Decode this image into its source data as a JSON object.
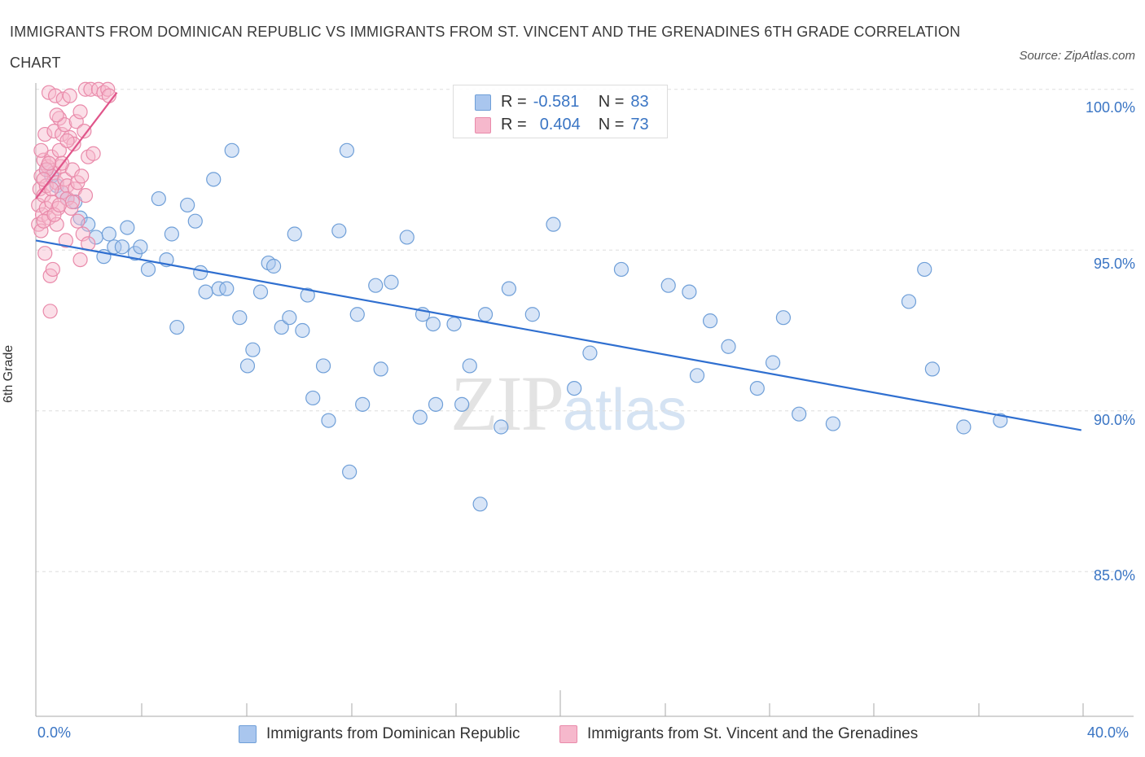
{
  "chart_data": {
    "type": "scatter",
    "title": "IMMIGRANTS FROM DOMINICAN REPUBLIC VS IMMIGRANTS FROM ST. VINCENT AND THE GRENADINES 6TH GRADE CORRELATION CHART",
    "source": "Source: ZipAtlas.com",
    "xlabel": "",
    "ylabel": "6th Grade",
    "xlim": [
      0,
      42
    ],
    "ylim": [
      80.5,
      100.5
    ],
    "x_tick_labels": {
      "left": "0.0%",
      "right": "40.0%"
    },
    "y_ticks": [
      {
        "value": 100,
        "label": "100.0%"
      },
      {
        "value": 95,
        "label": "95.0%"
      },
      {
        "value": 90,
        "label": "90.0%"
      },
      {
        "value": 85,
        "label": "85.0%"
      }
    ],
    "watermark": {
      "zip": "ZIP",
      "atlas": "atlas"
    },
    "series": [
      {
        "name": "Immigrants from Dominican Republic",
        "color": "#a9c6ee",
        "stroke": "#6f9fd8",
        "line_color": "#2f6fd0",
        "R": "-0.581",
        "N": "83",
        "trend": {
          "x0": 0,
          "y0": 95.3,
          "x1": 40,
          "y1": 89.4
        },
        "points": [
          [
            0.4,
            97.5
          ],
          [
            0.6,
            97.3
          ],
          [
            0.8,
            97.0
          ],
          [
            1.0,
            96.8
          ],
          [
            1.2,
            96.6
          ],
          [
            1.5,
            96.5
          ],
          [
            1.7,
            96.0
          ],
          [
            2.0,
            95.8
          ],
          [
            2.3,
            95.4
          ],
          [
            2.6,
            94.8
          ],
          [
            2.8,
            95.5
          ],
          [
            3.0,
            95.1
          ],
          [
            3.3,
            95.1
          ],
          [
            3.5,
            95.7
          ],
          [
            3.8,
            94.9
          ],
          [
            4.0,
            95.1
          ],
          [
            4.3,
            94.4
          ],
          [
            4.7,
            96.6
          ],
          [
            5.0,
            94.7
          ],
          [
            5.2,
            95.5
          ],
          [
            5.4,
            92.6
          ],
          [
            5.8,
            96.4
          ],
          [
            6.1,
            95.9
          ],
          [
            6.3,
            94.3
          ],
          [
            6.5,
            93.7
          ],
          [
            6.8,
            97.2
          ],
          [
            7.0,
            93.8
          ],
          [
            7.3,
            93.8
          ],
          [
            7.5,
            98.1
          ],
          [
            7.8,
            92.9
          ],
          [
            8.1,
            91.4
          ],
          [
            8.3,
            91.9
          ],
          [
            8.6,
            93.7
          ],
          [
            8.9,
            94.6
          ],
          [
            9.1,
            94.5
          ],
          [
            9.4,
            92.6
          ],
          [
            9.7,
            92.9
          ],
          [
            9.9,
            95.5
          ],
          [
            10.2,
            92.5
          ],
          [
            10.4,
            93.6
          ],
          [
            10.6,
            90.4
          ],
          [
            11.0,
            91.4
          ],
          [
            11.2,
            89.7
          ],
          [
            11.6,
            95.6
          ],
          [
            11.9,
            98.1
          ],
          [
            12.0,
            88.1
          ],
          [
            12.3,
            93.0
          ],
          [
            12.5,
            90.2
          ],
          [
            13.0,
            93.9
          ],
          [
            13.2,
            91.3
          ],
          [
            13.6,
            94.0
          ],
          [
            14.2,
            95.4
          ],
          [
            14.7,
            89.8
          ],
          [
            14.8,
            93.0
          ],
          [
            15.2,
            92.7
          ],
          [
            15.3,
            90.2
          ],
          [
            16.0,
            92.7
          ],
          [
            16.3,
            90.2
          ],
          [
            16.6,
            91.4
          ],
          [
            17.0,
            87.1
          ],
          [
            17.2,
            93.0
          ],
          [
            17.8,
            89.5
          ],
          [
            18.1,
            93.8
          ],
          [
            19.0,
            93.0
          ],
          [
            19.8,
            95.8
          ],
          [
            20.6,
            90.7
          ],
          [
            21.2,
            91.8
          ],
          [
            22.4,
            94.4
          ],
          [
            24.2,
            93.9
          ],
          [
            25.0,
            93.7
          ],
          [
            25.3,
            91.1
          ],
          [
            25.8,
            92.8
          ],
          [
            26.5,
            92.0
          ],
          [
            27.6,
            90.7
          ],
          [
            28.2,
            91.5
          ],
          [
            28.6,
            92.9
          ],
          [
            29.2,
            89.9
          ],
          [
            30.5,
            89.6
          ],
          [
            33.4,
            93.4
          ],
          [
            34.0,
            94.4
          ],
          [
            34.3,
            91.3
          ],
          [
            35.5,
            89.5
          ],
          [
            36.9,
            89.7
          ]
        ]
      },
      {
        "name": "Immigrants from St. Vincent and the Grenadines",
        "color": "#f6b8cc",
        "stroke": "#e98aaa",
        "line_color": "#e0558a",
        "R": "0.404",
        "N": "73",
        "trend": {
          "x0": 0,
          "y0": 96.6,
          "x1": 3.1,
          "y1": 99.9
        },
        "points": [
          [
            0.1,
            95.8
          ],
          [
            0.1,
            96.4
          ],
          [
            0.15,
            96.9
          ],
          [
            0.2,
            97.3
          ],
          [
            0.2,
            95.6
          ],
          [
            0.25,
            96.1
          ],
          [
            0.3,
            97.8
          ],
          [
            0.3,
            96.7
          ],
          [
            0.35,
            98.6
          ],
          [
            0.35,
            94.9
          ],
          [
            0.4,
            96.3
          ],
          [
            0.4,
            97.0
          ],
          [
            0.45,
            97.6
          ],
          [
            0.5,
            99.9
          ],
          [
            0.5,
            96.0
          ],
          [
            0.55,
            94.2
          ],
          [
            0.55,
            93.1
          ],
          [
            0.6,
            97.9
          ],
          [
            0.6,
            96.5
          ],
          [
            0.65,
            94.4
          ],
          [
            0.7,
            97.4
          ],
          [
            0.7,
            98.7
          ],
          [
            0.75,
            99.8
          ],
          [
            0.8,
            95.8
          ],
          [
            0.8,
            97.1
          ],
          [
            0.85,
            96.3
          ],
          [
            0.9,
            98.1
          ],
          [
            0.9,
            99.1
          ],
          [
            0.95,
            97.6
          ],
          [
            1.0,
            96.8
          ],
          [
            1.0,
            98.6
          ],
          [
            1.05,
            99.7
          ],
          [
            1.1,
            97.2
          ],
          [
            1.1,
            98.9
          ],
          [
            1.15,
            95.3
          ],
          [
            1.2,
            97.0
          ],
          [
            1.2,
            96.6
          ],
          [
            1.3,
            99.8
          ],
          [
            1.3,
            98.5
          ],
          [
            1.35,
            96.3
          ],
          [
            1.4,
            97.5
          ],
          [
            1.45,
            98.3
          ],
          [
            1.5,
            96.9
          ],
          [
            1.55,
            99.0
          ],
          [
            1.6,
            97.1
          ],
          [
            1.6,
            95.9
          ],
          [
            1.7,
            99.3
          ],
          [
            1.7,
            94.7
          ],
          [
            1.75,
            97.3
          ],
          [
            1.8,
            95.5
          ],
          [
            1.85,
            98.7
          ],
          [
            1.9,
            100.0
          ],
          [
            1.9,
            96.7
          ],
          [
            2.0,
            95.2
          ],
          [
            2.0,
            97.9
          ],
          [
            2.1,
            100.0
          ],
          [
            2.2,
            98.0
          ],
          [
            2.4,
            100.0
          ],
          [
            2.6,
            99.9
          ],
          [
            2.75,
            100.0
          ],
          [
            2.8,
            99.8
          ],
          [
            0.2,
            98.1
          ],
          [
            0.3,
            95.9
          ],
          [
            0.4,
            97.5
          ],
          [
            0.6,
            96.9
          ],
          [
            0.7,
            96.1
          ],
          [
            0.8,
            99.2
          ],
          [
            1.0,
            97.7
          ],
          [
            1.2,
            98.4
          ],
          [
            1.4,
            96.5
          ],
          [
            0.5,
            97.7
          ],
          [
            0.9,
            96.4
          ],
          [
            0.3,
            97.2
          ]
        ]
      }
    ]
  }
}
